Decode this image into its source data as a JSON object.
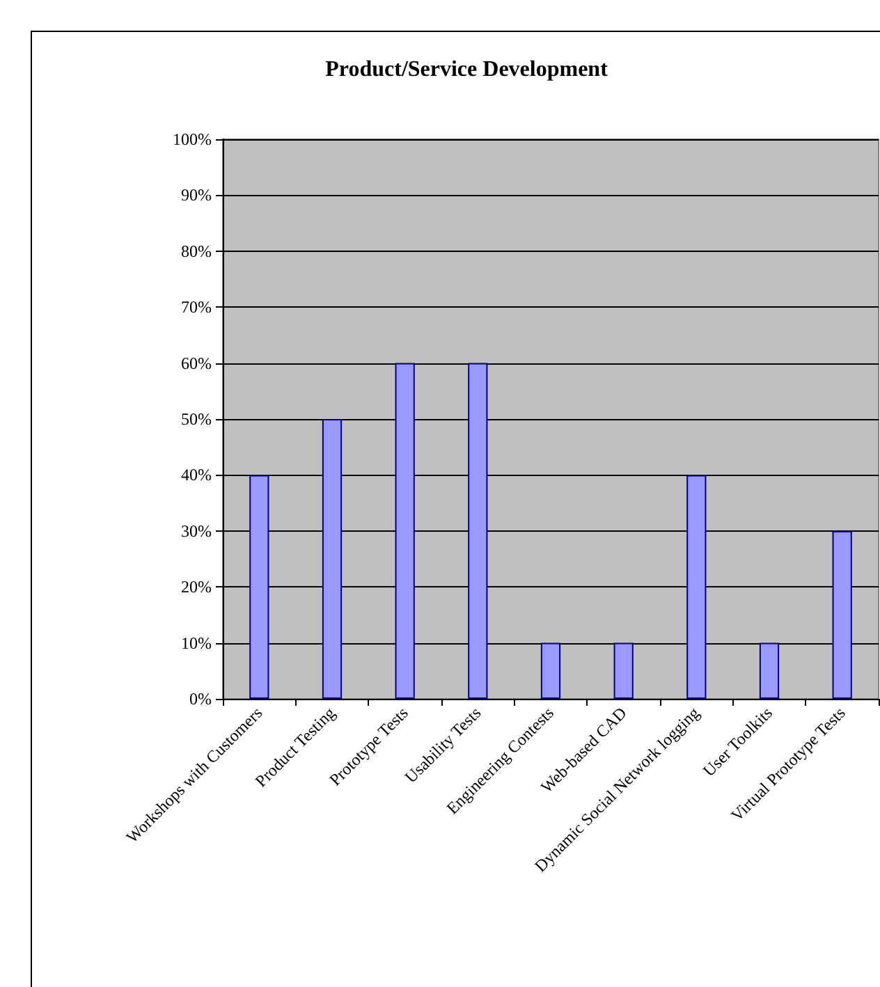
{
  "chart_data": {
    "type": "bar",
    "title": "Product/Service Development",
    "categories": [
      "Workshops with Customers",
      "Product Testing",
      "Prototype Tests",
      "Usability Tests",
      "Engineering Contests",
      "Web-based CAD",
      "Dynamic Social Network logging",
      "User Toolkits",
      "Virtual Prototype Tests"
    ],
    "values": [
      40,
      50,
      60,
      60,
      10,
      10,
      40,
      10,
      30
    ],
    "color": "#9999ff",
    "ylim": [
      0,
      100
    ],
    "yticks": [
      {
        "value": 0,
        "label": "0%"
      },
      {
        "value": 10,
        "label": "10%"
      },
      {
        "value": 20,
        "label": "20%"
      },
      {
        "value": 30,
        "label": "30%"
      },
      {
        "value": 40,
        "label": "40%"
      },
      {
        "value": 50,
        "label": "50%"
      },
      {
        "value": 60,
        "label": "60%"
      },
      {
        "value": 70,
        "label": "70%"
      },
      {
        "value": 80,
        "label": "80%"
      },
      {
        "value": 90,
        "label": "90%"
      },
      {
        "value": 100,
        "label": "100%"
      }
    ],
    "grid": "y"
  }
}
